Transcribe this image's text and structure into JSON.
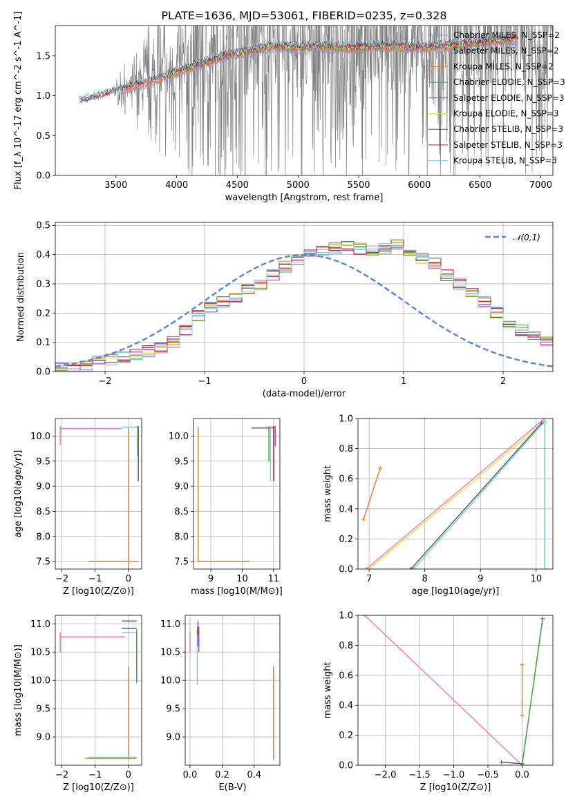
{
  "figure": {
    "title": "PLATE=1636, MJD=53061, FIBERID=0235, z=0.328"
  },
  "chart_data": [
    {
      "id": "spectrum",
      "type": "line",
      "title": "PLATE=1636, MJD=53061, FIBERID=0235, z=0.328",
      "xlabel": "wavelength [Angstrom, rest frame]",
      "ylabel": "Flux [f_λ 10^-17 erg cm^-2 s^-1 A^-1]",
      "xlim": [
        3000,
        7100
      ],
      "ylim": [
        0,
        1.88
      ],
      "xticks": [
        3500,
        4000,
        4500,
        5000,
        5500,
        6000,
        6500,
        7000
      ],
      "yticks": [
        0.0,
        0.5,
        1.0,
        1.5
      ],
      "legend_position": "top-right",
      "grid": false,
      "observed": {
        "color": "#808080",
        "wavelength_range": [
          3200,
          7100
        ],
        "continuum": [
          [
            3200,
            0.92
          ],
          [
            3400,
            1.0
          ],
          [
            3600,
            1.1
          ],
          [
            3800,
            1.18
          ],
          [
            4000,
            1.3
          ],
          [
            4200,
            1.4
          ],
          [
            4400,
            1.5
          ],
          [
            4600,
            1.56
          ],
          [
            4800,
            1.62
          ],
          [
            5000,
            1.6
          ],
          [
            5200,
            1.62
          ],
          [
            5400,
            1.6
          ],
          [
            5600,
            1.62
          ],
          [
            5800,
            1.62
          ],
          [
            6000,
            1.6
          ],
          [
            6200,
            1.62
          ],
          [
            6400,
            1.65
          ],
          [
            6600,
            1.68
          ],
          [
            6800,
            1.72
          ],
          [
            7000,
            1.75
          ]
        ]
      },
      "series": [
        {
          "name": "Chabrier MILES, N_SSP=2",
          "color": "#6f9fde",
          "x_range": [
            3540,
            6800
          ]
        },
        {
          "name": "Salpeter MILES, N_SSP=2",
          "color": "#f07cb4",
          "x_range": [
            3540,
            6800
          ]
        },
        {
          "name": "Kroupa MILES, N_SSP=2",
          "color": "#e8802f",
          "x_range": [
            3540,
            6800
          ]
        },
        {
          "name": "Chabrier ELODIE, N_SSP=3",
          "color": "#4aa63c",
          "x_range": [
            3900,
            6800
          ]
        },
        {
          "name": "Salpeter ELODIE, N_SSP=3",
          "color": "#a441c8",
          "x_range": [
            3900,
            6800
          ]
        },
        {
          "name": "Kroupa ELODIE, N_SSP=3",
          "color": "#dce83a",
          "x_range": [
            3900,
            6800
          ]
        },
        {
          "name": "Chabrier STELIB, N_SSP=3",
          "color": "#5a5a5a",
          "x_range": [
            3200,
            6800
          ]
        },
        {
          "name": "Salpeter STELIB, N_SSP=3",
          "color": "#c0102a",
          "x_range": [
            3200,
            6800
          ]
        },
        {
          "name": "Kroupa STELIB, N_SSP=3",
          "color": "#72d4de",
          "x_range": [
            3200,
            6800
          ]
        }
      ]
    },
    {
      "id": "residual-hist",
      "type": "line",
      "xlabel": "(data-model)/error",
      "ylabel": "Normed distribution",
      "xlim": [
        -2.5,
        2.5
      ],
      "ylim": [
        0,
        0.51
      ],
      "xticks": [
        -2,
        -1,
        0,
        1,
        2
      ],
      "yticks": [
        0.0,
        0.1,
        0.2,
        0.3,
        0.4,
        0.5
      ],
      "grid": true,
      "legend_position": "top-right",
      "reference": {
        "name": "𝒩(0,1)",
        "color": "#5b87d6",
        "mean": 0,
        "sigma": 1
      },
      "bin_width": 0.125,
      "histogram": [
        0.01,
        0.015,
        0.02,
        0.035,
        0.04,
        0.05,
        0.06,
        0.07,
        0.08,
        0.1,
        0.14,
        0.19,
        0.22,
        0.24,
        0.25,
        0.28,
        0.3,
        0.33,
        0.36,
        0.38,
        0.4,
        0.41,
        0.42,
        0.43,
        0.42,
        0.41,
        0.42,
        0.43,
        0.41,
        0.39,
        0.37,
        0.33,
        0.3,
        0.27,
        0.24,
        0.2,
        0.17,
        0.14,
        0.12,
        0.1,
        0.08,
        0.065,
        0.05,
        0.04,
        0.03,
        0.025,
        0.02,
        0.015,
        0.015,
        0.01
      ]
    },
    {
      "id": "age-vs-z",
      "type": "line",
      "xlabel": "Z [log10(Z/Z⊙)]",
      "ylabel": "age [log10(age/yr)]",
      "xlim": [
        -2.2,
        0.4
      ],
      "ylim": [
        7.35,
        10.35
      ],
      "xticks": [
        -2,
        -1,
        0
      ],
      "yticks": [
        7.5,
        8.0,
        8.5,
        9.0,
        9.5,
        10.0
      ],
      "grid": true,
      "segments": [
        {
          "color": "#f07cb4",
          "x": [
            -2.05,
            -0.2
          ],
          "y": [
            10.15,
            10.15
          ]
        },
        {
          "color": "#f07cb4",
          "x": [
            -2.05,
            -2.05
          ],
          "y": [
            9.82,
            10.2
          ]
        },
        {
          "color": "#e8802f",
          "x": [
            -1.2,
            0.3
          ],
          "y": [
            7.5,
            7.5
          ]
        },
        {
          "color": "#e8802f",
          "x": [
            0,
            0
          ],
          "y": [
            7.35,
            10.15
          ]
        },
        {
          "color": "#5a5a5a",
          "x": [
            0.3,
            0.3
          ],
          "y": [
            9.1,
            10.2
          ]
        },
        {
          "color": "#72d4de",
          "x": [
            -0.2,
            0.3
          ],
          "y": [
            10.18,
            10.18
          ]
        },
        {
          "color": "#4aa63c",
          "x": [
            0.28,
            0.28
          ],
          "y": [
            9.6,
            10.2
          ]
        }
      ]
    },
    {
      "id": "age-vs-mass",
      "type": "line",
      "xlabel": "mass [log10(M/M⊙)]",
      "ylabel": "",
      "xlim": [
        8.45,
        11.2
      ],
      "ylim": [
        7.35,
        10.35
      ],
      "xticks": [
        9,
        10,
        11
      ],
      "yticks": [
        7.5,
        8.0,
        8.5,
        9.0,
        9.5,
        10.0
      ],
      "grid": true,
      "segments": [
        {
          "color": "#e8802f",
          "x": [
            8.6,
            8.6
          ],
          "y": [
            7.5,
            10.18
          ]
        },
        {
          "color": "#e8802f",
          "x": [
            8.6,
            10.25
          ],
          "y": [
            7.5,
            7.5
          ]
        },
        {
          "color": "#5a5a5a",
          "x": [
            10.3,
            11.0
          ],
          "y": [
            10.16,
            10.16
          ]
        },
        {
          "color": "#c0102a",
          "x": [
            11.0,
            11.0
          ],
          "y": [
            9.1,
            10.2
          ]
        },
        {
          "color": "#a441c8",
          "x": [
            11.05,
            11.05
          ],
          "y": [
            9.8,
            10.2
          ]
        },
        {
          "color": "#72d4de",
          "x": [
            10.9,
            10.9
          ],
          "y": [
            9.1,
            10.2
          ]
        },
        {
          "color": "#4aa63c",
          "x": [
            10.85,
            10.85
          ],
          "y": [
            9.5,
            10.2
          ]
        }
      ]
    },
    {
      "id": "mass-weight-vs-age",
      "type": "line",
      "xlabel": "age [log10(age/yr)]",
      "ylabel": "mass weight",
      "xlim": [
        6.8,
        10.3
      ],
      "ylim": [
        0,
        1.0
      ],
      "xticks": [
        7,
        8,
        9,
        10
      ],
      "yticks": [
        0.0,
        0.2,
        0.4,
        0.6,
        0.8,
        1.0
      ],
      "grid": true,
      "segments": [
        {
          "color": "#e8802f",
          "x": [
            6.9,
            7.2
          ],
          "y": [
            0.33,
            0.67
          ]
        },
        {
          "color": "#f07cb4",
          "x": [
            6.95,
            10.15
          ],
          "y": [
            0.0,
            1.0
          ]
        },
        {
          "color": "#dce83a",
          "x": [
            7.0,
            10.15
          ],
          "y": [
            0.0,
            0.98
          ]
        },
        {
          "color": "#72d4de",
          "x": [
            7.8,
            10.15
          ],
          "y": [
            0.0,
            0.98
          ]
        },
        {
          "color": "#5a5a5a",
          "x": [
            7.75,
            10.1
          ],
          "y": [
            0.0,
            0.97
          ]
        },
        {
          "color": "#72d4de",
          "x": [
            10.15,
            10.15
          ],
          "y": [
            0.0,
            0.98
          ]
        }
      ]
    },
    {
      "id": "mass-vs-z",
      "type": "line",
      "xlabel": "Z [log10(Z/Z⊙)]",
      "ylabel": "mass [log10(M/M⊙)]",
      "xlim": [
        -2.2,
        0.4
      ],
      "ylim": [
        8.5,
        11.15
      ],
      "xticks": [
        -2,
        -1,
        0
      ],
      "yticks": [
        9.0,
        9.5,
        10.0,
        10.5,
        11.0
      ],
      "grid": true,
      "segments": [
        {
          "color": "#f07cb4",
          "x": [
            -2.05,
            -0.1
          ],
          "y": [
            10.77,
            10.77
          ]
        },
        {
          "color": "#f07cb4",
          "x": [
            -2.05,
            -2.05
          ],
          "y": [
            10.5,
            10.85
          ]
        },
        {
          "color": "#e8802f",
          "x": [
            0,
            0
          ],
          "y": [
            8.6,
            10.25
          ]
        },
        {
          "color": "#e8802f",
          "x": [
            -1.3,
            0.25
          ],
          "y": [
            8.62,
            8.62
          ]
        },
        {
          "color": "#72d4de",
          "x": [
            -1.2,
            0.25
          ],
          "y": [
            8.64,
            8.64
          ]
        },
        {
          "color": "#a441c8",
          "x": [
            -0.2,
            0.25
          ],
          "y": [
            11.05,
            11.05
          ]
        },
        {
          "color": "#5a5a5a",
          "x": [
            -0.2,
            0.25
          ],
          "y": [
            10.92,
            10.92
          ]
        },
        {
          "color": "#72d4de",
          "x": [
            -0.2,
            0.25
          ],
          "y": [
            10.85,
            10.85
          ]
        },
        {
          "color": "#4aa63c",
          "x": [
            0.25,
            0.25
          ],
          "y": [
            9.95,
            10.9
          ]
        }
      ]
    },
    {
      "id": "mass-vs-ebv",
      "type": "line",
      "xlabel": "E(B-V)",
      "ylabel": "",
      "xlim": [
        -0.03,
        0.56
      ],
      "ylim": [
        8.5,
        11.15
      ],
      "xticks": [
        0.0,
        0.2,
        0.4
      ],
      "yticks": [
        9.0,
        9.5,
        10.0,
        10.5,
        11.0
      ],
      "grid": true,
      "segments": [
        {
          "color": "#e8802f",
          "x": [
            0.52,
            0.52
          ],
          "y": [
            8.6,
            10.25
          ]
        },
        {
          "color": "#f07cb4",
          "x": [
            0.0,
            0.0
          ],
          "y": [
            10.5,
            10.85
          ]
        },
        {
          "color": "#72d4de",
          "x": [
            0.045,
            0.045
          ],
          "y": [
            9.92,
            10.9
          ]
        },
        {
          "color": "#a441c8",
          "x": [
            0.05,
            0.05
          ],
          "y": [
            10.6,
            11.05
          ]
        },
        {
          "color": "#4aa63c",
          "x": [
            0.055,
            0.055
          ],
          "y": [
            10.5,
            10.95
          ]
        },
        {
          "color": "#c0102a",
          "x": [
            0.048,
            0.048
          ],
          "y": [
            10.8,
            10.95
          ]
        }
      ]
    },
    {
      "id": "mass-weight-vs-z",
      "type": "line",
      "xlabel": "Z [log10(Z/Z⊙)]",
      "ylabel": "mass weight",
      "xlim": [
        -2.4,
        0.45
      ],
      "ylim": [
        0,
        1.0
      ],
      "xticks": [
        -2.0,
        -1.5,
        -1.0,
        -0.5,
        0.0
      ],
      "yticks": [
        0.0,
        0.2,
        0.4,
        0.6,
        0.8,
        1.0
      ],
      "grid": true,
      "segments": [
        {
          "color": "#f07cb4",
          "x": [
            -2.3,
            0.0
          ],
          "y": [
            1.0,
            0.0
          ]
        },
        {
          "color": "#e8802f",
          "x": [
            0.0,
            0.0
          ],
          "y": [
            0.33,
            0.67
          ]
        },
        {
          "color": "#72d4de",
          "x": [
            0.0,
            0.3
          ],
          "y": [
            0.0,
            0.97
          ]
        },
        {
          "color": "#5a5a5a",
          "x": [
            -0.3,
            0.0
          ],
          "y": [
            0.02,
            0.01
          ]
        },
        {
          "color": "#4aa63c",
          "x": [
            0.0,
            0.3
          ],
          "y": [
            0.0,
            0.98
          ]
        }
      ]
    }
  ]
}
